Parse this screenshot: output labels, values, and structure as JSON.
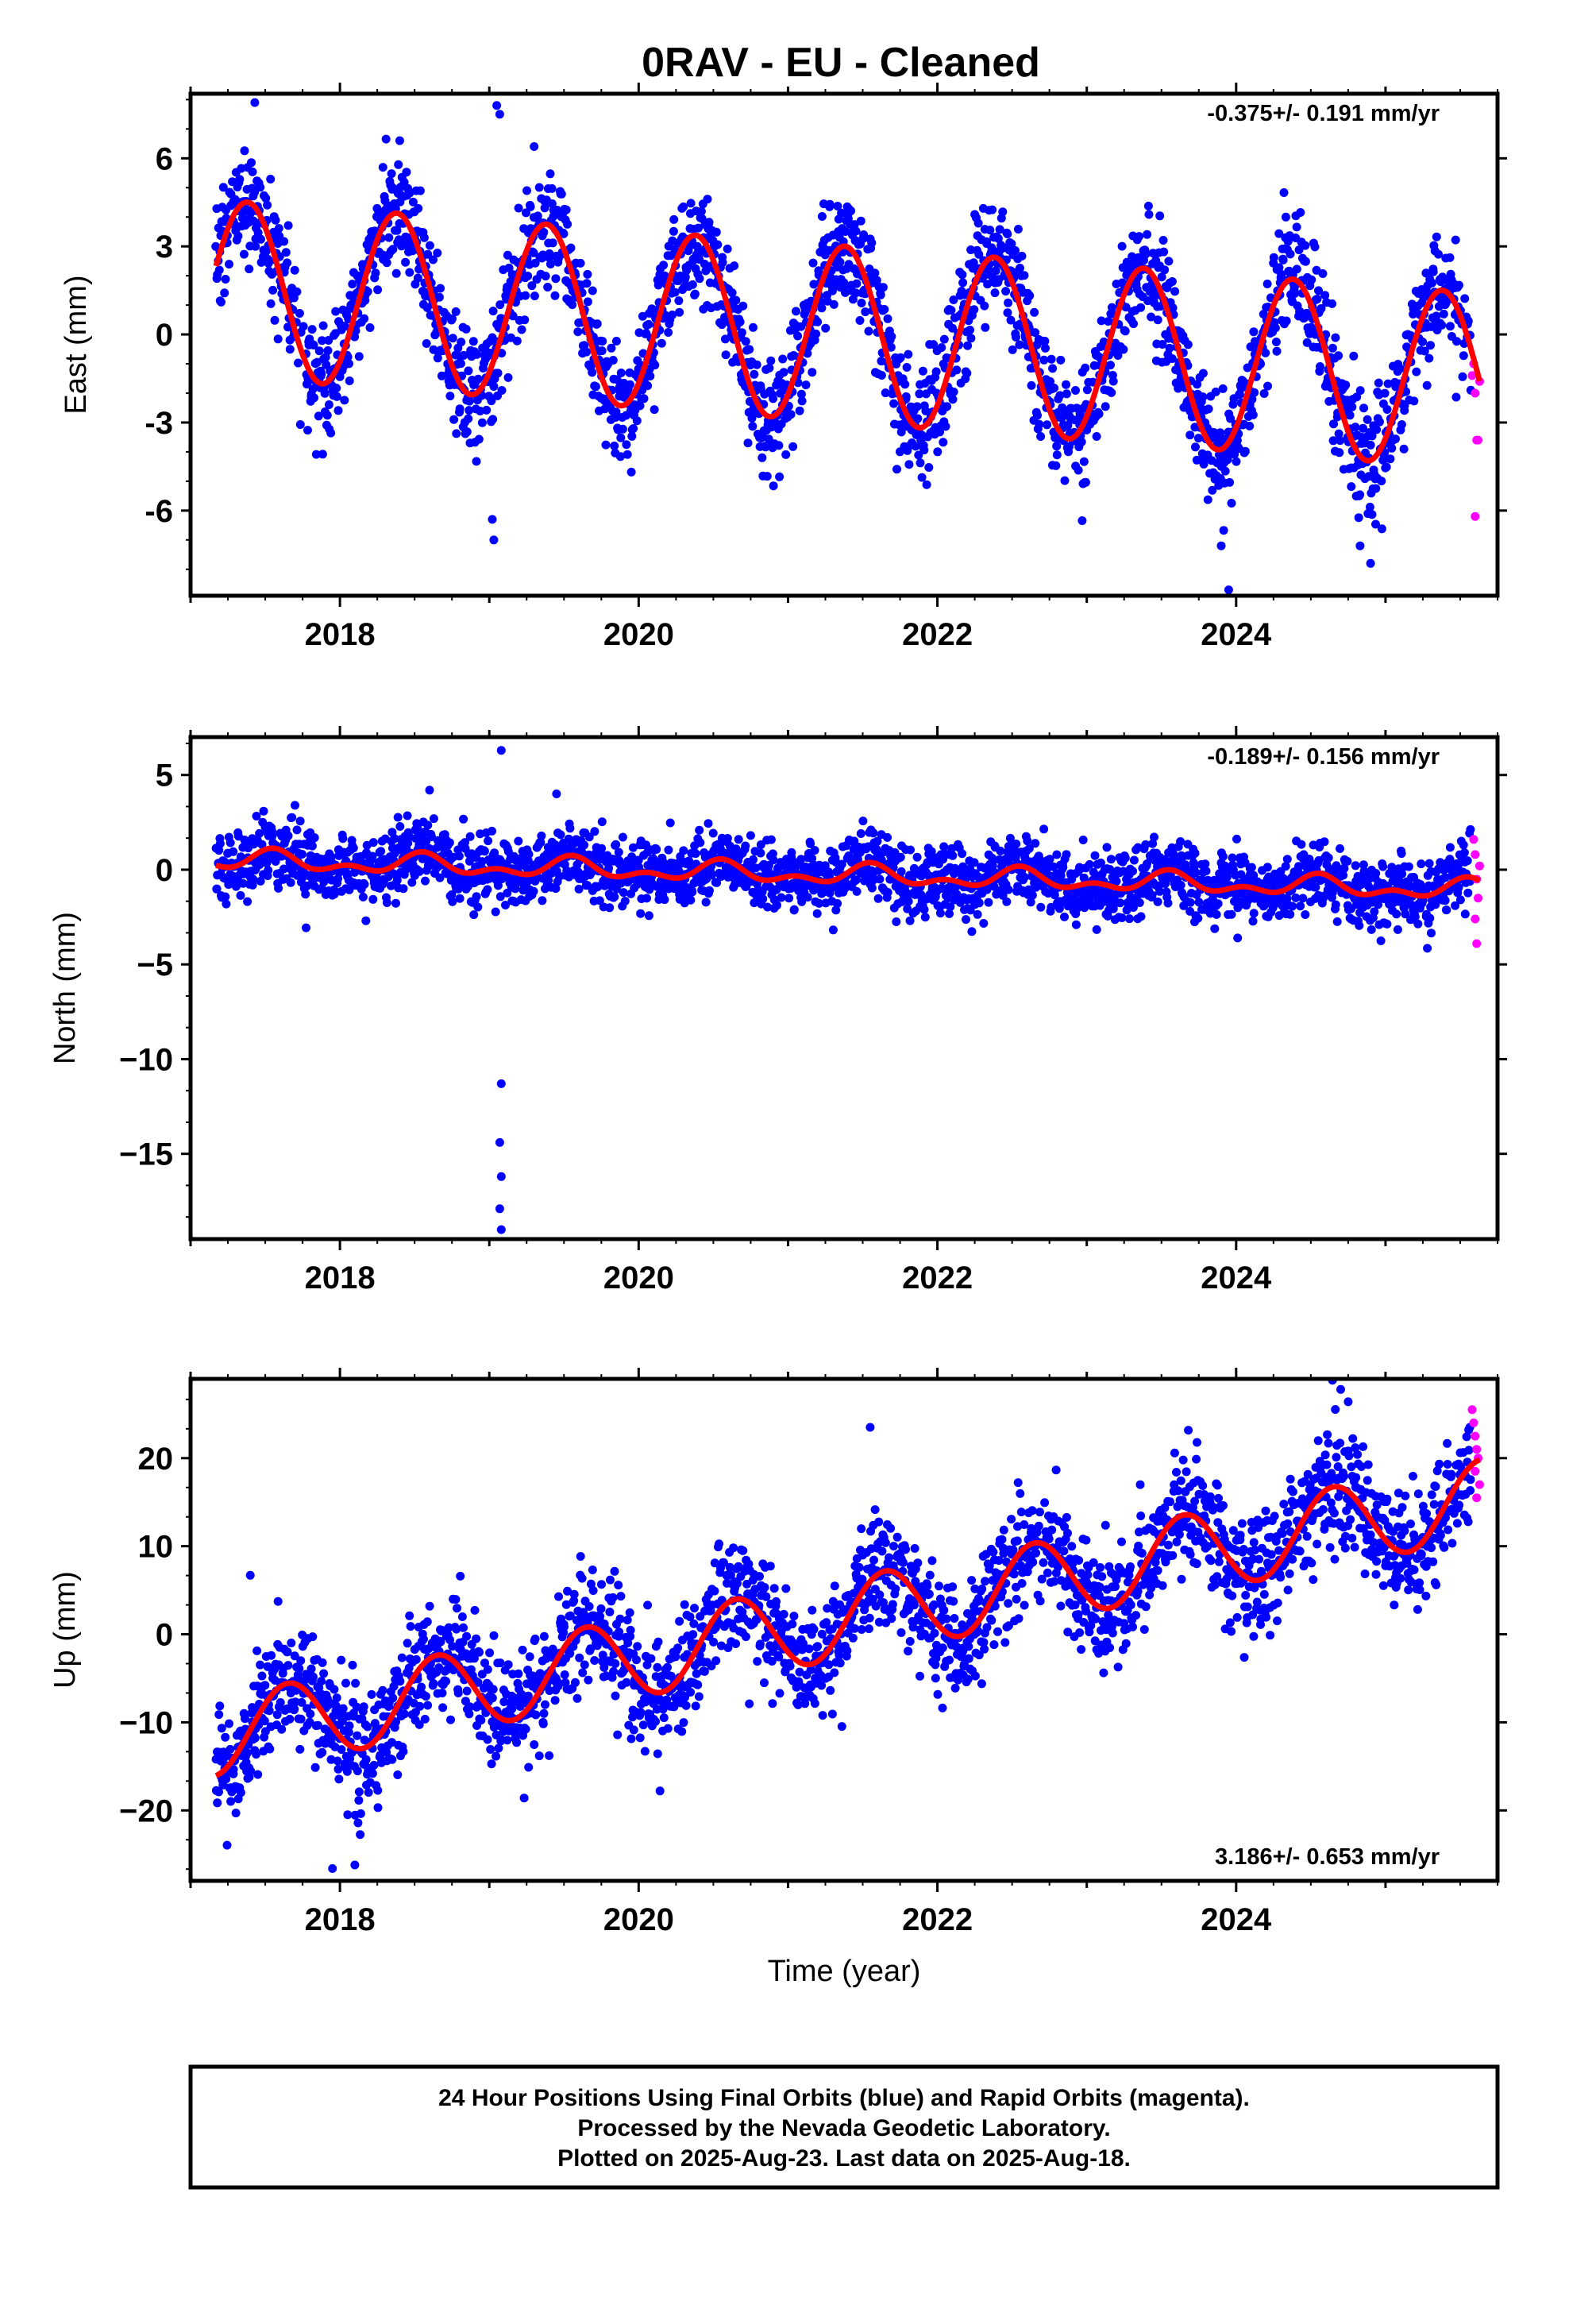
{
  "title": "0RAV  - EU - Cleaned",
  "colors": {
    "final": "#0000ff",
    "rapid": "#ff00ff",
    "model": "#ff0000",
    "frame": "#000000"
  },
  "xlabel": "Time (year)",
  "x_tick_labels": [
    "2018",
    "2020",
    "2022",
    "2024"
  ],
  "footer": {
    "line1": "24 Hour Positions Using Final Orbits (blue) and Rapid Orbits (magenta).",
    "line2": "Processed by the Nevada Geodetic Laboratory.",
    "line3": "Plotted on 2025-Aug-23. Last data on 2025-Aug-18."
  },
  "chart_data": [
    {
      "type": "scatter",
      "component": "east",
      "ylabel": "East (mm)",
      "rate": "-0.375+/- 0.191 mm/yr",
      "rate_position": "top-right",
      "xlim": [
        2017.0,
        2025.75
      ],
      "ylim": [
        -8.9,
        8.2
      ],
      "y_ticks": [
        -6,
        -3,
        0,
        3,
        6
      ],
      "y_tick_labels": [
        "-6",
        "-3",
        "0",
        "3",
        "6"
      ],
      "x_ticks": [
        2018,
        2020,
        2022,
        2024
      ],
      "data_range": [
        2017.17,
        2025.63
      ],
      "rapid_start": 2025.57,
      "model": {
        "offset": 0.0,
        "rate": -0.375,
        "ref_year": 2021.4,
        "annual_amp": 3.0,
        "annual_phase_year": 2017.38,
        "semiannual_amp": 0.0
      },
      "scatter_sd": 1.0,
      "point_count": 2400,
      "outliers": [
        {
          "x": 2017.43,
          "y": 7.9
        },
        {
          "x": 2018.4,
          "y": 6.6
        },
        {
          "x": 2019.05,
          "y": 7.8
        },
        {
          "x": 2019.07,
          "y": 7.5
        },
        {
          "x": 2019.3,
          "y": 6.4
        },
        {
          "x": 2019.02,
          "y": -6.3
        },
        {
          "x": 2019.03,
          "y": -7.0
        },
        {
          "x": 2023.95,
          "y": -8.7
        },
        {
          "x": 2023.9,
          "y": -7.2
        },
        {
          "x": 2024.9,
          "y": -7.8
        },
        {
          "x": 2024.83,
          "y": -7.2
        }
      ],
      "rapid_points": [
        {
          "x": 2025.58,
          "y": -1.4
        },
        {
          "x": 2025.59,
          "y": -1.0
        },
        {
          "x": 2025.6,
          "y": -2.0
        },
        {
          "x": 2025.61,
          "y": -3.6
        },
        {
          "x": 2025.62,
          "y": -3.6
        },
        {
          "x": 2025.6,
          "y": -6.2
        },
        {
          "x": 2025.63,
          "y": -1.6
        }
      ]
    },
    {
      "type": "scatter",
      "component": "north",
      "ylabel": "North (mm)",
      "rate": "-0.189+/- 0.156 mm/yr",
      "rate_position": "top-right",
      "xlim": [
        2017.0,
        2025.75
      ],
      "ylim": [
        -19.5,
        7.0
      ],
      "y_ticks": [
        -15,
        -10,
        -5,
        0,
        5
      ],
      "y_tick_labels": [
        "−15",
        "−10",
        "−5",
        "0",
        "5"
      ],
      "x_ticks": [
        2018,
        2020,
        2022,
        2024
      ],
      "data_range": [
        2017.17,
        2025.63
      ],
      "rapid_start": 2025.57,
      "model": {
        "offset": 0.5,
        "rate": -0.189,
        "ref_year": 2017.2,
        "annual_amp": 0.4,
        "annual_phase_year": 2017.55,
        "semiannual_amp": 0.3
      },
      "scatter_sd": 0.9,
      "point_count": 2400,
      "outliers": [
        {
          "x": 2019.08,
          "y": 6.3
        },
        {
          "x": 2019.08,
          "y": -11.3
        },
        {
          "x": 2019.07,
          "y": -14.4
        },
        {
          "x": 2019.08,
          "y": -16.2
        },
        {
          "x": 2019.07,
          "y": -17.9
        },
        {
          "x": 2019.08,
          "y": -19.0
        },
        {
          "x": 2018.6,
          "y": 4.2
        },
        {
          "x": 2019.45,
          "y": 4.0
        }
      ],
      "rapid_points": [
        {
          "x": 2025.59,
          "y": 1.6
        },
        {
          "x": 2025.6,
          "y": 0.8
        },
        {
          "x": 2025.61,
          "y": -0.5
        },
        {
          "x": 2025.62,
          "y": -1.5
        },
        {
          "x": 2025.6,
          "y": -2.6
        },
        {
          "x": 2025.61,
          "y": -3.9
        },
        {
          "x": 2025.63,
          "y": 0.2
        }
      ]
    },
    {
      "type": "scatter",
      "component": "up",
      "ylabel": "Up (mm)",
      "rate": "3.186+/- 0.653 mm/yr",
      "rate_position": "bottom-right",
      "xlim": [
        2017.0,
        2025.75
      ],
      "ylim": [
        -28,
        29
      ],
      "y_ticks": [
        -20,
        -10,
        0,
        10,
        20
      ],
      "y_tick_labels": [
        "−20",
        "−10",
        "0",
        "10",
        "20"
      ],
      "x_ticks": [
        2018,
        2020,
        2022,
        2024
      ],
      "data_range": [
        2017.17,
        2025.63
      ],
      "rapid_start": 2025.57,
      "model": {
        "offset": -11.5,
        "rate": 3.186,
        "ref_year": 2017.2,
        "annual_amp": 4.5,
        "annual_phase_year": 2017.65,
        "semiannual_amp": 0.0
      },
      "scatter_sd": 3.3,
      "point_count": 2400,
      "outliers": [
        {
          "x": 2021.55,
          "y": 23.5
        },
        {
          "x": 2024.7,
          "y": 27.8
        },
        {
          "x": 2024.75,
          "y": 26.4
        },
        {
          "x": 2017.4,
          "y": 6.7
        },
        {
          "x": 2017.95,
          "y": -26.6
        },
        {
          "x": 2018.1,
          "y": -26.2
        }
      ],
      "rapid_points": [
        {
          "x": 2025.58,
          "y": 25.5
        },
        {
          "x": 2025.59,
          "y": 24.0
        },
        {
          "x": 2025.6,
          "y": 22.5
        },
        {
          "x": 2025.61,
          "y": 21.0
        },
        {
          "x": 2025.62,
          "y": 20.0
        },
        {
          "x": 2025.6,
          "y": 18.5
        },
        {
          "x": 2025.63,
          "y": 17.0
        },
        {
          "x": 2025.61,
          "y": 15.5
        }
      ]
    }
  ]
}
